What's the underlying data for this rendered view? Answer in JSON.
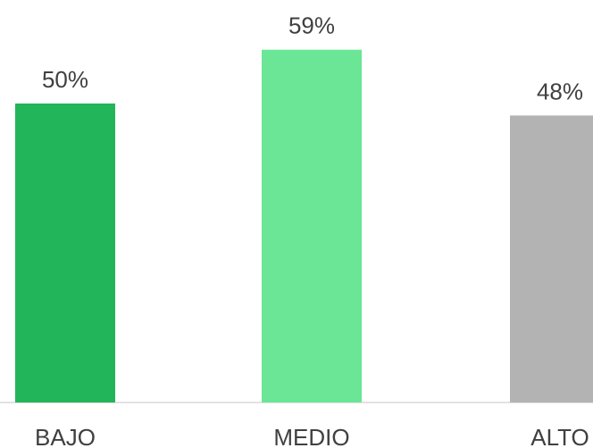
{
  "chart_data": {
    "type": "bar",
    "categories": [
      "BAJO",
      "MEDIO",
      "ALTO"
    ],
    "values": [
      50,
      59,
      48
    ],
    "value_labels": [
      "50%",
      "59%",
      "48%"
    ],
    "colors": [
      "#22b55a",
      "#6ae696",
      "#b3b3b3"
    ],
    "ylim": [
      0,
      60
    ],
    "grid": false,
    "legend": "none"
  }
}
